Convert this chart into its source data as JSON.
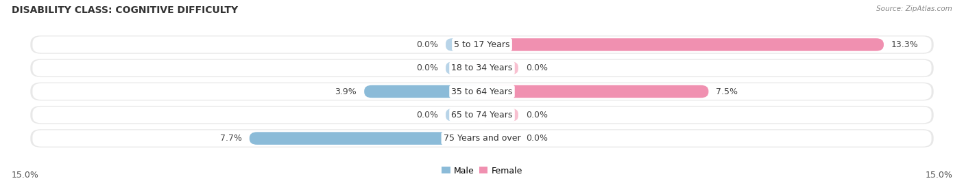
{
  "title": "DISABILITY CLASS: COGNITIVE DIFFICULTY",
  "source": "Source: ZipAtlas.com",
  "categories": [
    "5 to 17 Years",
    "18 to 34 Years",
    "35 to 64 Years",
    "65 to 74 Years",
    "75 Years and over"
  ],
  "male_values": [
    0.0,
    0.0,
    3.9,
    0.0,
    7.7
  ],
  "female_values": [
    13.3,
    0.0,
    7.5,
    0.0,
    0.0
  ],
  "max_val": 15.0,
  "male_color": "#8bbbd8",
  "female_color": "#f090b0",
  "male_color_zero": "#b8d4e8",
  "female_color_zero": "#f8c0d0",
  "row_bg_color": "#e8e8e8",
  "axis_label_left": "15.0%",
  "axis_label_right": "15.0%",
  "legend_male": "Male",
  "legend_female": "Female",
  "title_fontsize": 10,
  "label_fontsize": 9,
  "value_fontsize": 9,
  "tick_fontsize": 9
}
